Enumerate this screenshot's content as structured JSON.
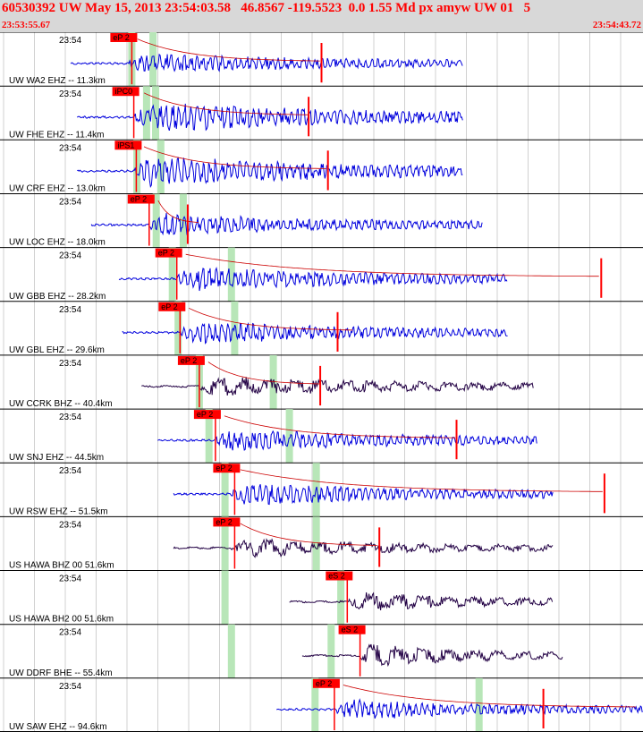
{
  "header": {
    "title": "60530392 UW May 15, 2013 23:54:03.58   46.8567 -119.5523  0.0 1.55 Md px amyw UW 01   5",
    "start_time": "23:53:55.67",
    "end_time": "23:54:43.72"
  },
  "chart_data": {
    "type": "line",
    "title": "60530392 UW May 15, 2013 23:54:03.58   46.8567 -119.5523  0.0 1.55 Md px amyw UW 01   5",
    "x_range": [
      "23:53:55.67",
      "23:54:43.72"
    ],
    "grid": true,
    "colors": {
      "ehz": "#0000dd",
      "broadband": "#220044",
      "pick": "#ff0000",
      "window": "#b8e6b8",
      "coda": "#000000"
    },
    "traces": [
      {
        "label": "UW WA2 EHZ -- 11.3km",
        "time_label": "23:54",
        "pick": "eP 2",
        "pick_x": 0.205,
        "onset": 0.2,
        "end": 0.72,
        "amp": 0.5,
        "color": "blue",
        "windows": [
          0.205,
          0.238
        ],
        "coda_end": 0.5,
        "mark": 0.5
      },
      {
        "label": "UW FHE EHZ -- 11.4km",
        "time_label": "23:54",
        "pick": "iPC0",
        "pick_x": 0.208,
        "onset": 0.21,
        "end": 0.72,
        "amp": 0.75,
        "color": "blue",
        "windows": [
          0.228,
          0.242
        ],
        "coda_end": 0.48,
        "mark": 0.48
      },
      {
        "label": "UW CRF EHZ -- 13.0km",
        "time_label": "23:54",
        "pick": "iPS1",
        "pick_x": 0.212,
        "onset": 0.21,
        "end": 0.72,
        "amp": 0.75,
        "color": "blue",
        "windows": [
          0.213,
          0.25
        ],
        "coda_end": 0.51,
        "mark": 0.51
      },
      {
        "label": "UW LOC EHZ -- 18.0km",
        "time_label": "23:54",
        "pick": "eP 2",
        "pick_x": 0.232,
        "onset": 0.232,
        "end": 0.75,
        "amp": 0.55,
        "color": "blue",
        "windows": [
          0.243,
          0.285
        ],
        "coda_end": 0.31,
        "mark": 0.292
      },
      {
        "label": "UW GBB EHZ -- 28.2km",
        "time_label": "23:54",
        "pick": "eP 2",
        "pick_x": 0.275,
        "onset": 0.275,
        "end": 0.79,
        "amp": 0.6,
        "color": "blue",
        "windows": [
          0.268,
          0.36
        ],
        "coda_end": 0.935,
        "mark": 0.935
      },
      {
        "label": "UW GBL EHZ -- 29.6km",
        "time_label": "23:54",
        "pick": "eP 2",
        "pick_x": 0.28,
        "onset": 0.28,
        "end": 0.79,
        "amp": 0.55,
        "color": "blue",
        "windows": [
          0.277,
          0.365
        ],
        "coda_end": 0.55,
        "mark": 0.525
      },
      {
        "label": "UW CCRK BHZ -- 40.4km",
        "time_label": "23:54",
        "pick": "eP 2",
        "pick_x": 0.31,
        "onset": 0.31,
        "end": 0.83,
        "amp": 0.5,
        "color": "dark",
        "windows": [
          0.31,
          0.425
        ],
        "coda_end": 0.5,
        "mark": 0.498
      },
      {
        "label": "UW SNJ EHZ -- 44.5km",
        "time_label": "23:54",
        "pick": "eP 2",
        "pick_x": 0.335,
        "onset": 0.335,
        "end": 0.835,
        "amp": 0.55,
        "color": "blue",
        "windows": [
          0.325,
          0.45
        ],
        "coda_end": 0.71,
        "mark": 0.71
      },
      {
        "label": "UW RSW EHZ -- 51.5km",
        "time_label": "23:54",
        "pick": "eP 2",
        "pick_x": 0.365,
        "onset": 0.36,
        "end": 0.86,
        "amp": 0.55,
        "color": "blue",
        "windows": [
          0.35,
          0.492
        ],
        "coda_end": 0.94,
        "mark": 0.94
      },
      {
        "label": "US HAWA BHZ 00 51.6km",
        "time_label": "23:54",
        "pick": "eP 2",
        "pick_x": 0.365,
        "onset": 0.36,
        "end": 0.86,
        "amp": 0.45,
        "color": "dark",
        "windows": [
          0.35,
          0.492
        ],
        "coda_end": 0.59,
        "mark": 0.59
      },
      {
        "label": "US HAWA BH2 00 51.6km",
        "time_label": "23:54",
        "pick": "eS 2",
        "pick_x": 0.54,
        "onset": 0.54,
        "end": 0.86,
        "amp": 0.5,
        "color": "dark",
        "windows": [
          0.35,
          0.53
        ],
        "coda_end": 0.0,
        "mark": 0.0
      },
      {
        "label": "UW DDRF BHE -- 55.4km",
        "time_label": "23:54",
        "pick": "eS 2",
        "pick_x": 0.56,
        "onset": 0.56,
        "end": 0.875,
        "amp": 0.55,
        "color": "dark",
        "windows": [
          0.36,
          0.515
        ],
        "coda_end": 0.0,
        "mark": 0.0
      },
      {
        "label": "UW SAW EHZ -- 94.6km",
        "time_label": "23:54",
        "pick": "eP 2",
        "pick_x": 0.52,
        "onset": 0.52,
        "end": 1.0,
        "amp": 0.5,
        "color": "blue",
        "windows": [
          0.49,
          0.745
        ],
        "coda_end": 0.99,
        "mark": 0.845
      }
    ]
  }
}
